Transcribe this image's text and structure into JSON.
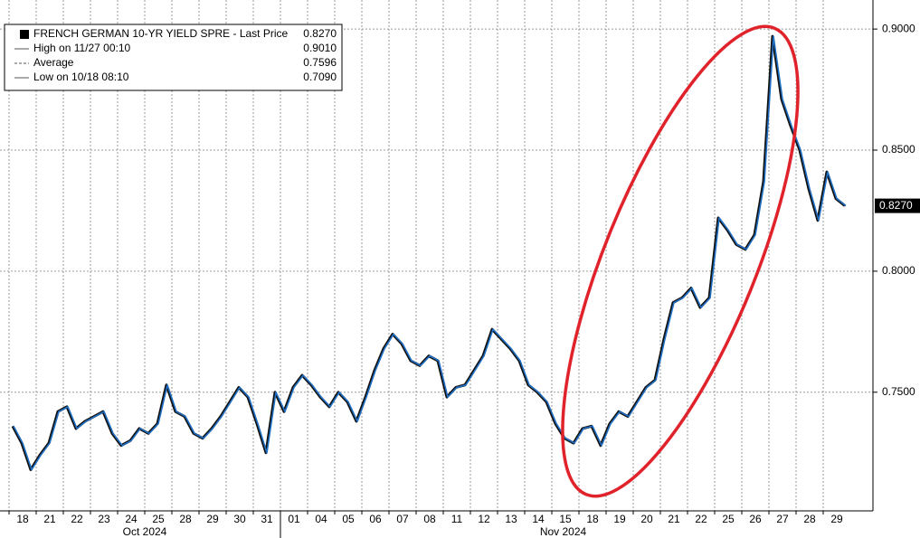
{
  "chart_data": {
    "type": "line",
    "categories": [
      "18",
      null,
      null,
      "21",
      null,
      null,
      "22",
      null,
      null,
      "23",
      null,
      null,
      "24",
      null,
      null,
      "25",
      null,
      null,
      "28",
      null,
      null,
      "29",
      null,
      null,
      "30",
      null,
      null,
      "31",
      null,
      null,
      "01",
      null,
      null,
      "04",
      null,
      null,
      "05",
      null,
      null,
      "06",
      null,
      null,
      "07",
      null,
      null,
      "08",
      null,
      null,
      "11",
      null,
      null,
      "12",
      null,
      null,
      "13",
      null,
      null,
      "14",
      null,
      null,
      "15",
      null,
      null,
      "18",
      null,
      null,
      "19",
      null,
      null,
      "20",
      null,
      null,
      "21",
      null,
      null,
      "22",
      null,
      null,
      "25",
      null,
      null,
      "26",
      null,
      null,
      "27",
      null,
      null,
      "28",
      null,
      null,
      "29",
      null,
      null
    ],
    "month_labels": [
      "Oct 2024",
      "Nov 2024"
    ],
    "series": [
      {
        "name": "FRENCH GERMAN 10-YR YIELD SPRE - Last Price",
        "color": "#1f6fc5",
        "values": [
          0.736,
          0.729,
          0.718,
          0.724,
          0.729,
          0.742,
          0.744,
          0.735,
          0.738,
          0.74,
          0.742,
          0.733,
          0.728,
          0.73,
          0.735,
          0.733,
          0.737,
          0.753,
          0.742,
          0.74,
          0.733,
          0.731,
          0.735,
          0.74,
          0.746,
          0.752,
          0.748,
          0.737,
          0.725,
          0.75,
          0.742,
          0.752,
          0.757,
          0.753,
          0.748,
          0.744,
          0.75,
          0.746,
          0.738,
          0.748,
          0.759,
          0.768,
          0.774,
          0.77,
          0.763,
          0.761,
          0.765,
          0.763,
          0.748,
          0.752,
          0.753,
          0.759,
          0.765,
          0.776,
          0.772,
          0.768,
          0.763,
          0.753,
          0.75,
          0.746,
          0.737,
          0.731,
          0.729,
          0.735,
          0.736,
          0.728,
          0.737,
          0.742,
          0.74,
          0.746,
          0.752,
          0.755,
          0.772,
          0.787,
          0.789,
          0.793,
          0.785,
          0.789,
          0.822,
          0.817,
          0.811,
          0.809,
          0.815,
          0.837,
          0.897,
          0.871,
          0.86,
          0.85,
          0.834,
          0.821,
          0.841,
          0.83,
          0.827
        ]
      }
    ],
    "legend_rows": [
      {
        "label": "FRENCH GERMAN 10-YR YIELD SPRE - Last Price",
        "value": "0.8270"
      },
      {
        "label": "High on 11/27 00:10",
        "value": "0.9010"
      },
      {
        "label": "Average",
        "value": "0.7596"
      },
      {
        "label": "Low on 10/18 08:10",
        "value": "0.7090"
      }
    ],
    "last_price_label": "0.8270",
    "ylim": [
      0.701,
      0.912
    ],
    "yticks": [
      {
        "value": 0.75,
        "label": "0.7500"
      },
      {
        "value": 0.8,
        "label": "0.8000"
      },
      {
        "value": 0.85,
        "label": "0.8500"
      },
      {
        "value": 0.9,
        "label": "0.9000"
      }
    ],
    "grid": true
  }
}
